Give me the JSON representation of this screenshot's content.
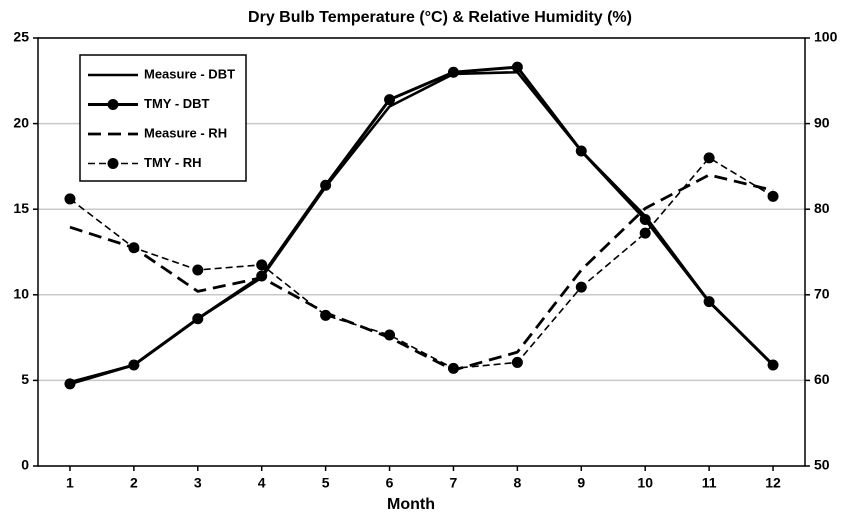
{
  "chart_data": {
    "type": "line",
    "title": "Dry Bulb Temperature (°C) & Relative Humidity (%)",
    "x_label": "Month",
    "categories": [
      1,
      2,
      3,
      4,
      5,
      6,
      7,
      8,
      9,
      10,
      11,
      12
    ],
    "ylim": [
      0,
      25
    ],
    "yticks": [
      0,
      5,
      10,
      15,
      20,
      25
    ],
    "y2lim": [
      50,
      100
    ],
    "y2ticks": [
      50,
      60,
      70,
      80,
      90,
      100
    ],
    "grid": true,
    "legend": "upper left",
    "series": [
      {
        "name": "Measure - DBT",
        "color": "#000000",
        "line_style": "solid",
        "marker": false,
        "values": [
          4.9,
          5.9,
          8.6,
          11.0,
          16.3,
          21.0,
          22.9,
          23.0,
          18.4,
          14.6,
          9.6,
          5.9
        ]
      },
      {
        "name": "TMY - DBT",
        "color": "#000000",
        "line_style": "solid",
        "marker": true,
        "values": [
          4.8,
          5.9,
          8.6,
          11.1,
          16.4,
          21.4,
          23.0,
          23.3,
          18.4,
          14.4,
          9.6,
          5.9
        ]
      },
      {
        "name": "Measure - RH",
        "color": "#000000",
        "line_style": "dashed",
        "marker": false,
        "axis": "y2",
        "values": [
          77.9,
          75.5,
          70.4,
          72.0,
          67.9,
          65.0,
          61.2,
          63.3,
          72.9,
          80.1,
          84.0,
          82.2
        ]
      },
      {
        "name": "TMY - RH",
        "color": "#000000",
        "line_style": "dashed",
        "marker": true,
        "axis": "y2",
        "values": [
          81.2,
          75.5,
          72.9,
          73.5,
          67.6,
          65.3,
          61.4,
          62.1,
          70.9,
          77.2,
          86.0,
          81.5
        ]
      }
    ]
  }
}
